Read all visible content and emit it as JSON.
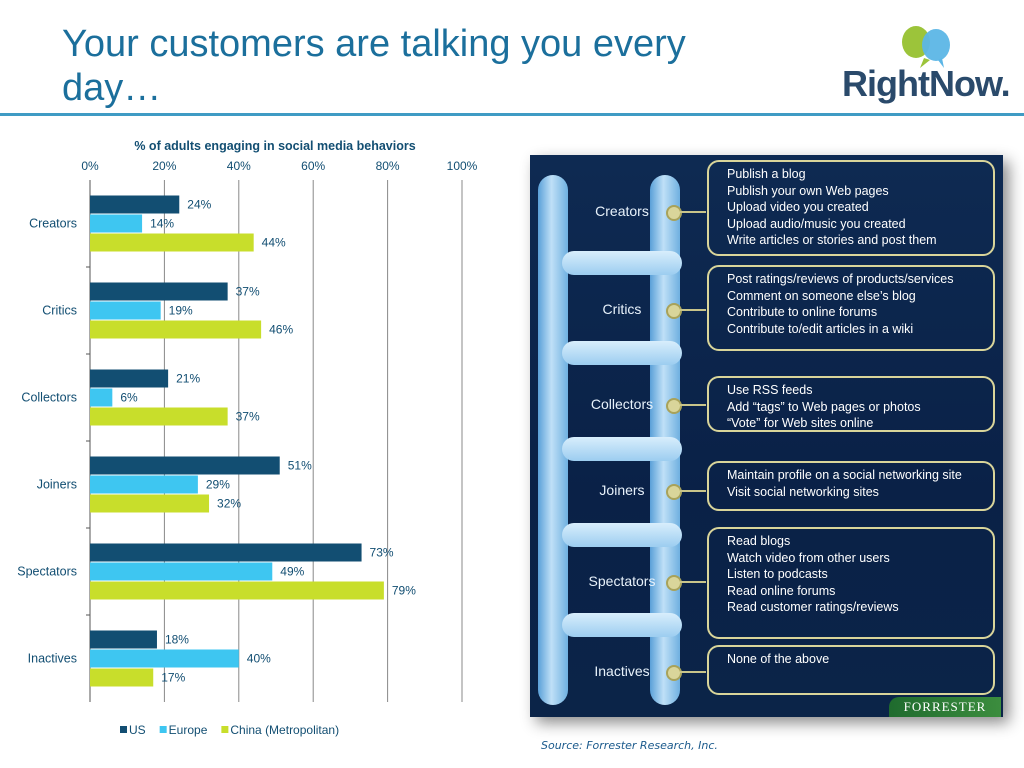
{
  "slide": {
    "title": "Your customers are talking you every day…",
    "logo_text": "RightNow.",
    "source": "Source: Forrester Research, Inc."
  },
  "chart_data": {
    "type": "bar",
    "orientation": "horizontal",
    "title": "% of adults engaging in social media behaviors",
    "categories": [
      "Creators",
      "Critics",
      "Collectors",
      "Joiners",
      "Spectators",
      "Inactives"
    ],
    "series": [
      {
        "name": "US",
        "color": "#124e72",
        "values": [
          24,
          37,
          21,
          51,
          73,
          18
        ]
      },
      {
        "name": "Europe",
        "color": "#3ec6f1",
        "values": [
          14,
          19,
          6,
          29,
          49,
          40
        ]
      },
      {
        "name": "China (Metropolitan)",
        "color": "#c8de2b",
        "values": [
          44,
          46,
          37,
          32,
          79,
          17
        ]
      }
    ],
    "xlim": [
      0,
      100
    ],
    "x_ticks": [
      "0%",
      "20%",
      "40%",
      "60%",
      "80%",
      "100%"
    ],
    "grid": true,
    "legend_position": "bottom"
  },
  "diagram": {
    "brand": "FORRESTER",
    "tiers": [
      {
        "label": "Creators",
        "items": [
          "Publish a blog",
          "Publish your own Web pages",
          "Upload video you created",
          "Upload audio/music you created",
          "Write articles or stories and post them"
        ]
      },
      {
        "label": "Critics",
        "items": [
          "Post ratings/reviews of products/services",
          "Comment on someone else’s blog",
          "Contribute to online forums",
          "Contribute to/edit articles in a wiki"
        ]
      },
      {
        "label": "Collectors",
        "items": [
          "Use RSS  feeds",
          "Add “tags” to Web pages or photos",
          "“Vote” for Web sites online"
        ]
      },
      {
        "label": "Joiners",
        "items": [
          "Maintain profile on a social networking site",
          "Visit social networking sites"
        ]
      },
      {
        "label": "Spectators",
        "items": [
          "Read blogs",
          "Watch video from other users",
          "Listen to podcasts",
          "Read online forums",
          "Read customer ratings/reviews"
        ]
      },
      {
        "label": "Inactives",
        "items": [
          "None of the above"
        ]
      }
    ]
  }
}
